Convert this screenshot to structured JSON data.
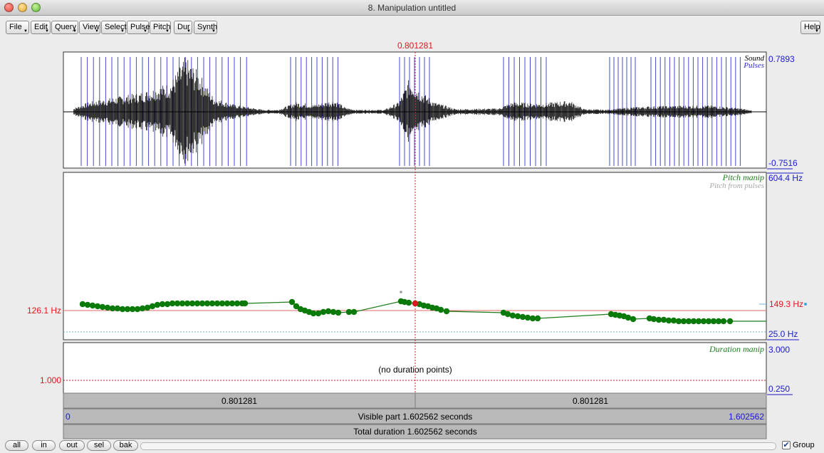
{
  "window": {
    "title": "8. Manipulation untitled"
  },
  "menus": [
    {
      "label": "File"
    },
    {
      "label": "Edit"
    },
    {
      "label": "Query"
    },
    {
      "label": "View"
    },
    {
      "label": "Select"
    },
    {
      "label": "Pulse"
    },
    {
      "label": "Pitch"
    },
    {
      "label": "Dur"
    },
    {
      "label": "Synth"
    }
  ],
  "help_menu": {
    "label": "Help"
  },
  "cursor": {
    "time_label": "0.801281",
    "time_s": 0.801281
  },
  "sound_panel": {
    "label_sound": "Sound",
    "label_pulses": "Pulses",
    "max_label": "0.7893",
    "min_label": "-0.7516"
  },
  "pitch_panel": {
    "label_manip": "Pitch manip",
    "label_pulses": "Pitch from pulses",
    "max_label": "604.4 Hz",
    "min_label": "25.0 Hz",
    "left_value_label": "126.1 Hz",
    "cursor_value_label": "149.3 Hz",
    "ref_hz": 126.1,
    "cursor_hz": 149.3,
    "min_hz": 25.0,
    "max_hz": 604.4,
    "manip_color": "#1e7d1e",
    "point_color": "#0a7a0a",
    "ref_line_color": "#e0696a",
    "min_line_color": "#6fb0d6"
  },
  "duration_panel": {
    "label": "Duration manip",
    "max_label": "3.000",
    "min_label": "0.250",
    "left_value_label": "1.000",
    "empty_message": "(no duration points)"
  },
  "time_bars": {
    "left_segment_label": "0.801281",
    "right_segment_label": "0.801281",
    "visible_start_label": "0",
    "visible_label": "Visible part 1.602562 seconds",
    "visible_end_label": "1.602562",
    "total_label": "Total duration 1.602562 seconds"
  },
  "zoom_buttons": [
    {
      "label": "all"
    },
    {
      "label": "in"
    },
    {
      "label": "out"
    },
    {
      "label": "sel"
    },
    {
      "label": "bak"
    }
  ],
  "group": {
    "label": "Group",
    "checked": true,
    "check_glyph": "✔"
  },
  "colors": {
    "cursor": "#e2141e",
    "pulse": "#4848d8",
    "axis_label": "#1a1acc",
    "red_label": "#e2141e"
  }
}
